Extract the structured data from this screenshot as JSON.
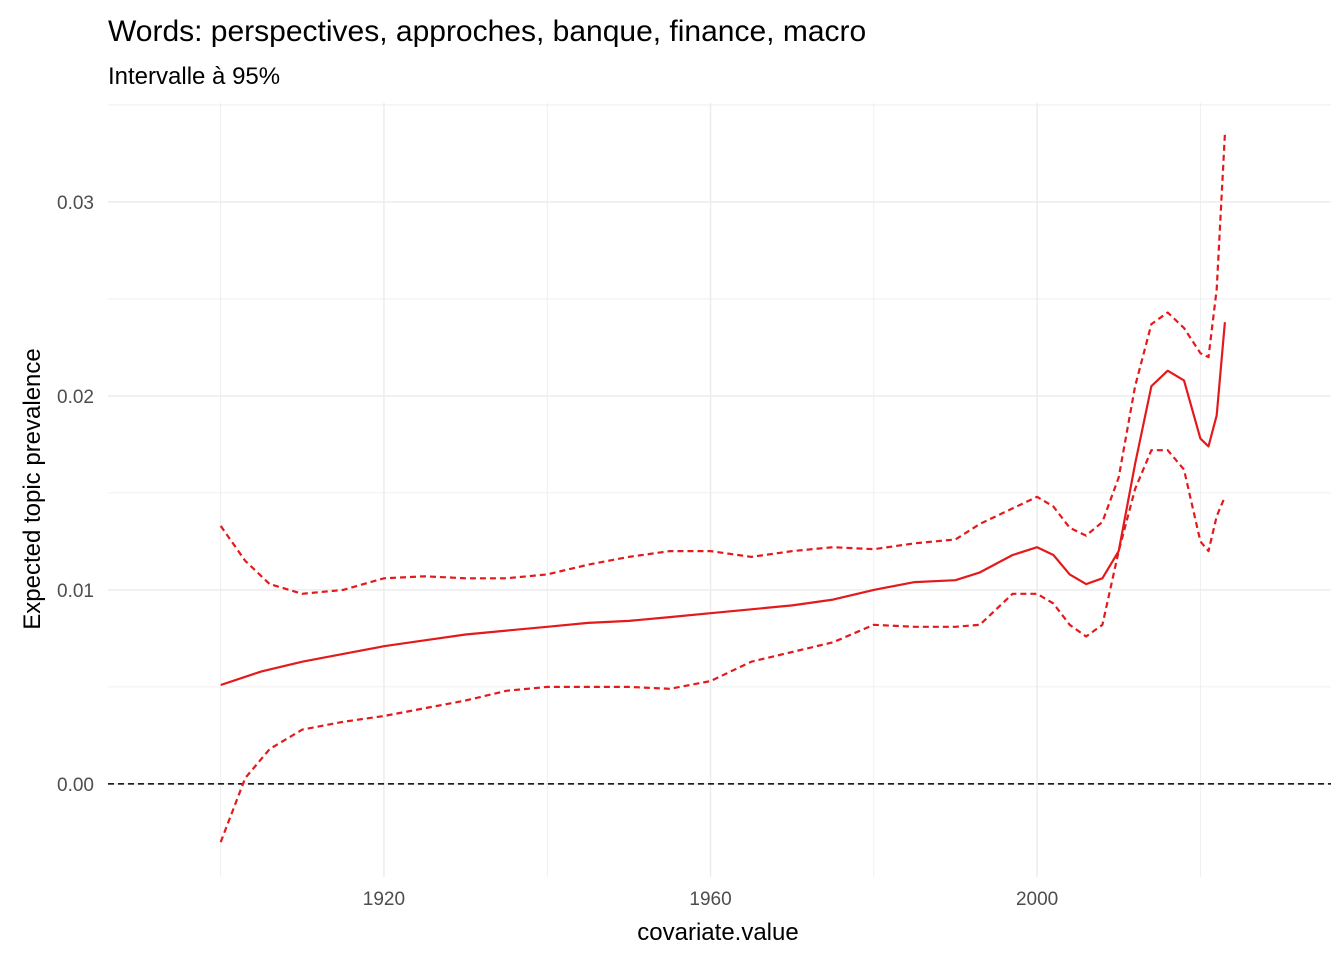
{
  "chart_data": {
    "type": "line",
    "title": "Words: perspectives, approches, banque, finance, macro",
    "subtitle": "Intervalle à 95%",
    "xlabel": "covariate.value",
    "ylabel": "Expected topic prevalence",
    "xlim": [
      1886.2,
      2036.0
    ],
    "ylim": [
      -0.0048,
      0.0351
    ],
    "x_ticks": [
      1920,
      1960,
      2000
    ],
    "x_tick_labels": [
      "1920",
      "1960",
      "2000"
    ],
    "y_ticks": [
      0.0,
      0.01,
      0.02,
      0.03
    ],
    "y_tick_labels": [
      "0.00",
      "0.01",
      "0.02",
      "0.03"
    ],
    "grid": true,
    "reference_line": {
      "y": 0.0,
      "style": "dashed",
      "color": "#000000"
    },
    "color": "#e31a1c",
    "series": [
      {
        "style": "solid",
        "x": [
          1900,
          1905,
          1910,
          1915,
          1920,
          1925,
          1930,
          1935,
          1940,
          1945,
          1950,
          1955,
          1960,
          1965,
          1970,
          1975,
          1980,
          1985,
          1990,
          1993,
          1997,
          2000,
          2002,
          2004,
          2006,
          2008,
          2010,
          2012,
          2014,
          2016,
          2018,
          2020,
          2021,
          2022,
          2023
        ],
        "y": [
          0.0051,
          0.0058,
          0.0063,
          0.0067,
          0.0071,
          0.0074,
          0.0077,
          0.0079,
          0.0081,
          0.0083,
          0.0084,
          0.0086,
          0.0088,
          0.009,
          0.0092,
          0.0095,
          0.01,
          0.0104,
          0.0105,
          0.0109,
          0.0118,
          0.0122,
          0.0118,
          0.0108,
          0.0103,
          0.0106,
          0.012,
          0.0165,
          0.0205,
          0.0213,
          0.0208,
          0.0178,
          0.0174,
          0.019,
          0.0238
        ]
      },
      {
        "style": "dashed",
        "x": [
          1900,
          1903,
          1906,
          1910,
          1915,
          1920,
          1925,
          1930,
          1935,
          1940,
          1945,
          1950,
          1955,
          1960,
          1965,
          1970,
          1975,
          1980,
          1985,
          1990,
          1993,
          1997,
          2000,
          2002,
          2004,
          2006,
          2008,
          2010,
          2012,
          2014,
          2016,
          2018,
          2020,
          2021,
          2022,
          2023
        ],
        "y": [
          0.0133,
          0.0115,
          0.0103,
          0.0098,
          0.01,
          0.0106,
          0.0107,
          0.0106,
          0.0106,
          0.0108,
          0.0113,
          0.0117,
          0.012,
          0.012,
          0.0117,
          0.012,
          0.0122,
          0.0121,
          0.0124,
          0.0126,
          0.0134,
          0.0142,
          0.0148,
          0.0143,
          0.0132,
          0.0128,
          0.0135,
          0.0158,
          0.0205,
          0.0237,
          0.0243,
          0.0235,
          0.0222,
          0.022,
          0.0255,
          0.0335
        ]
      },
      {
        "style": "dashed",
        "x": [
          1900,
          1903,
          1906,
          1910,
          1915,
          1920,
          1925,
          1930,
          1935,
          1940,
          1945,
          1950,
          1955,
          1960,
          1965,
          1970,
          1975,
          1980,
          1985,
          1990,
          1993,
          1997,
          2000,
          2002,
          2004,
          2006,
          2008,
          2010,
          2012,
          2014,
          2016,
          2018,
          2020,
          2021,
          2022,
          2023
        ],
        "y": [
          -0.003,
          0.0003,
          0.0018,
          0.0028,
          0.0032,
          0.0035,
          0.0039,
          0.0043,
          0.0048,
          0.005,
          0.005,
          0.005,
          0.0049,
          0.0053,
          0.0063,
          0.0068,
          0.0073,
          0.0082,
          0.0081,
          0.0081,
          0.0082,
          0.0098,
          0.0098,
          0.0093,
          0.0082,
          0.0076,
          0.0082,
          0.012,
          0.0152,
          0.0172,
          0.0172,
          0.0162,
          0.0125,
          0.012,
          0.0138,
          0.0148
        ]
      }
    ]
  }
}
